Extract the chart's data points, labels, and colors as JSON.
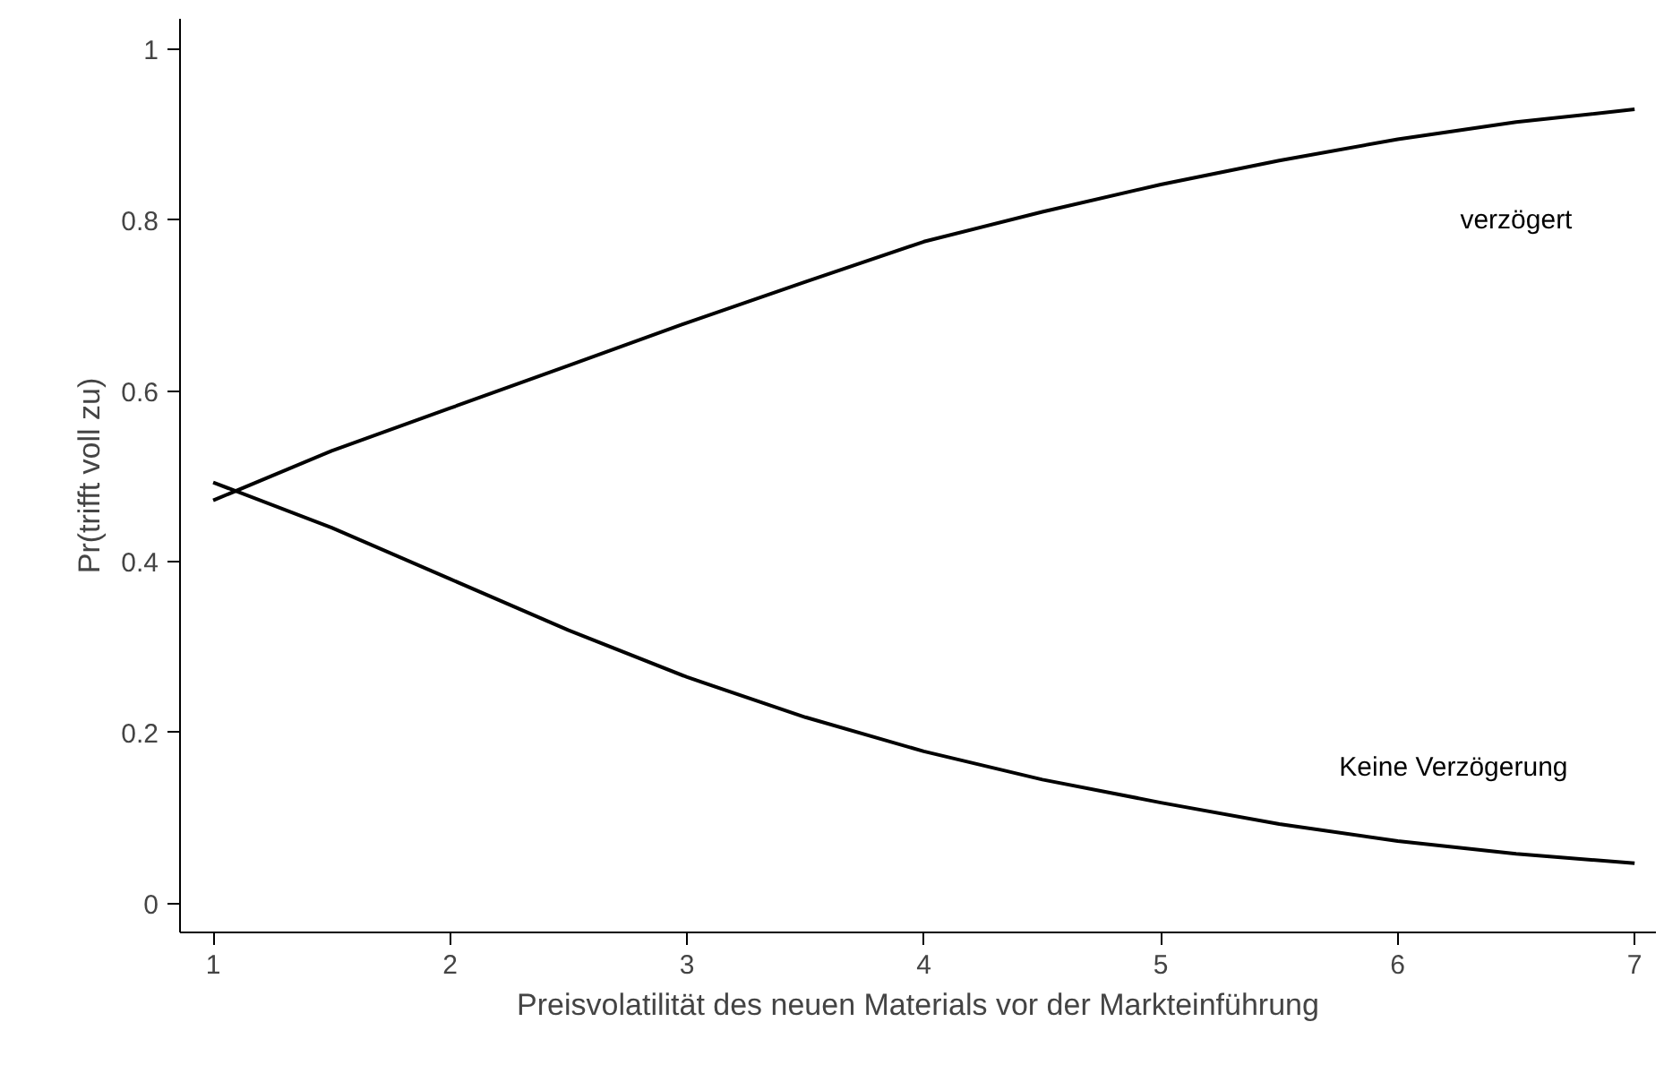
{
  "chart_data": {
    "type": "line",
    "xlabel": "Preisvolatilität des neuen Materials vor der Markteinführung",
    "ylabel": "Pr(trifft voll zu)",
    "x": [
      1,
      1.5,
      2,
      2.5,
      3,
      3.5,
      4,
      4.5,
      5,
      5.5,
      6,
      6.5,
      7
    ],
    "series": [
      {
        "name": "verzögert",
        "color": "#000000",
        "values": [
          0.472,
          0.53,
          0.58,
          0.63,
          0.68,
          0.728,
          0.775,
          0.81,
          0.842,
          0.87,
          0.895,
          0.915,
          0.93
        ]
      },
      {
        "name": "Keine Verzögerung",
        "color": "#000000",
        "values": [
          0.493,
          0.44,
          0.38,
          0.32,
          0.265,
          0.218,
          0.178,
          0.145,
          0.118,
          0.093,
          0.073,
          0.058,
          0.047
        ]
      }
    ],
    "xlim": [
      0.86,
      7.09
    ],
    "ylim": [
      -0.034,
      1.036
    ],
    "xticks": [
      1,
      2,
      3,
      4,
      5,
      6,
      7
    ],
    "yticks": [
      0,
      0.2,
      0.4,
      0.6,
      0.8,
      1
    ],
    "grid": false,
    "legend": false,
    "marker": "none",
    "line_style": "solid"
  }
}
